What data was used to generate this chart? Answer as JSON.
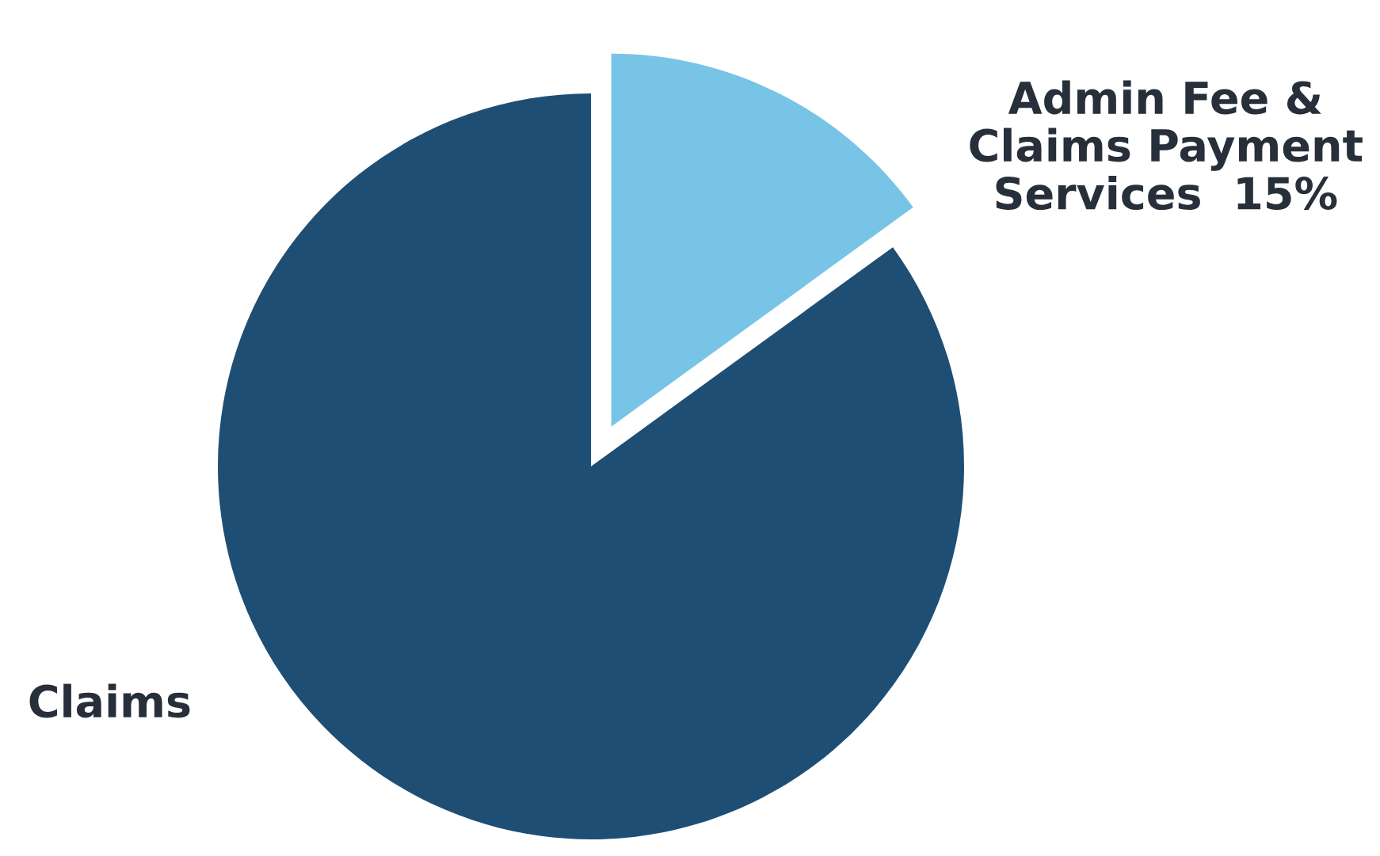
{
  "chart_data": {
    "type": "pie",
    "categories": [
      "Admin Fee &\nClaims Payment\nServices",
      "Claims"
    ],
    "values": [
      15,
      85
    ],
    "value_labels": [
      "15%",
      null
    ],
    "colors": [
      "#77c4e6",
      "#1f4e74"
    ]
  }
}
